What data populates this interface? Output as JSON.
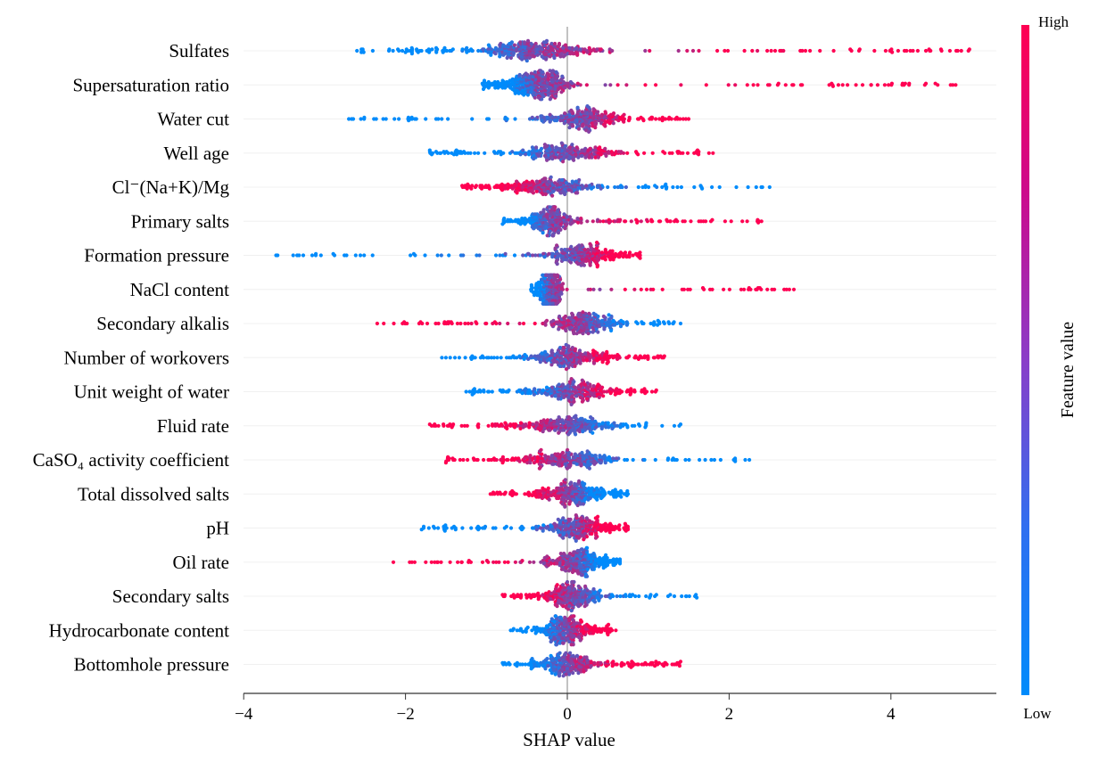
{
  "chart_data": {
    "type": "scatter",
    "subtype": "shap-beeswarm",
    "xlabel": "SHAP value",
    "xlim": [
      -4,
      5.3
    ],
    "xticks": [
      -4,
      -2,
      0,
      2,
      4
    ],
    "xtick_labels": [
      "−4",
      "−2",
      "0",
      "2",
      "4"
    ],
    "grid": false,
    "colorbar": {
      "label": "Feature value",
      "high_label": "High",
      "low_label": "Low",
      "high_color": "#ff0052",
      "low_color": "#008bfb",
      "placement": "right"
    },
    "features": [
      {
        "name": "Sulfates",
        "min": -2.6,
        "max": 4.97,
        "center": -0.4,
        "spread": 0.35,
        "high_side": "right"
      },
      {
        "name": "Supersaturation ratio",
        "min": -1.05,
        "max": 4.8,
        "center": -0.35,
        "spread": 0.22,
        "high_side": "right"
      },
      {
        "name": "Water cut",
        "min": -2.7,
        "max": 1.5,
        "center": 0.2,
        "spread": 0.3,
        "high_side": "right"
      },
      {
        "name": "Well age",
        "min": -1.7,
        "max": 1.8,
        "center": 0.0,
        "spread": 0.35,
        "high_side": "right"
      },
      {
        "name": "Cl⁻(Na+K)/Mg",
        "min": -1.3,
        "max": 2.5,
        "center": -0.2,
        "spread": 0.3,
        "high_side": "left"
      },
      {
        "name": "Primary salts",
        "min": -0.8,
        "max": 2.4,
        "center": -0.2,
        "spread": 0.15,
        "high_side": "right"
      },
      {
        "name": "Formation pressure",
        "min": -3.6,
        "max": 0.9,
        "center": 0.15,
        "spread": 0.25,
        "high_side": "right"
      },
      {
        "name": "NaCl content",
        "min": -0.45,
        "max": 2.8,
        "center": -0.2,
        "spread": 0.06,
        "high_side": "right"
      },
      {
        "name": "Secondary alkalis",
        "min": -2.35,
        "max": 1.4,
        "center": 0.2,
        "spread": 0.2,
        "high_side": "left"
      },
      {
        "name": "Number of workovers",
        "min": -1.55,
        "max": 1.2,
        "center": 0.0,
        "spread": 0.25,
        "high_side": "right"
      },
      {
        "name": "Unit weight of water",
        "min": -1.25,
        "max": 1.1,
        "center": 0.05,
        "spread": 0.25,
        "high_side": "right"
      },
      {
        "name": "Fluid rate",
        "min": -1.7,
        "max": 1.4,
        "center": 0.0,
        "spread": 0.3,
        "high_side": "left"
      },
      {
        "name": "CaSO₄ activity coefficient",
        "min": -1.5,
        "max": 2.25,
        "center": 0.0,
        "spread": 0.3,
        "high_side": "left"
      },
      {
        "name": "Total dissolved salts",
        "min": -0.95,
        "max": 0.75,
        "center": 0.05,
        "spread": 0.22,
        "high_side": "left"
      },
      {
        "name": "pH",
        "min": -1.8,
        "max": 0.75,
        "center": 0.1,
        "spread": 0.2,
        "high_side": "right"
      },
      {
        "name": "Oil rate",
        "min": -2.15,
        "max": 0.65,
        "center": 0.1,
        "spread": 0.2,
        "high_side": "left"
      },
      {
        "name": "Secondary salts",
        "min": -0.8,
        "max": 1.6,
        "center": 0.05,
        "spread": 0.2,
        "high_side": "left"
      },
      {
        "name": "Hydrocarbonate content",
        "min": -0.7,
        "max": 0.6,
        "center": 0.0,
        "spread": 0.18,
        "high_side": "right"
      },
      {
        "name": "Bottomhole pressure",
        "min": -0.8,
        "max": 1.4,
        "center": 0.0,
        "spread": 0.2,
        "high_side": "right"
      }
    ]
  }
}
